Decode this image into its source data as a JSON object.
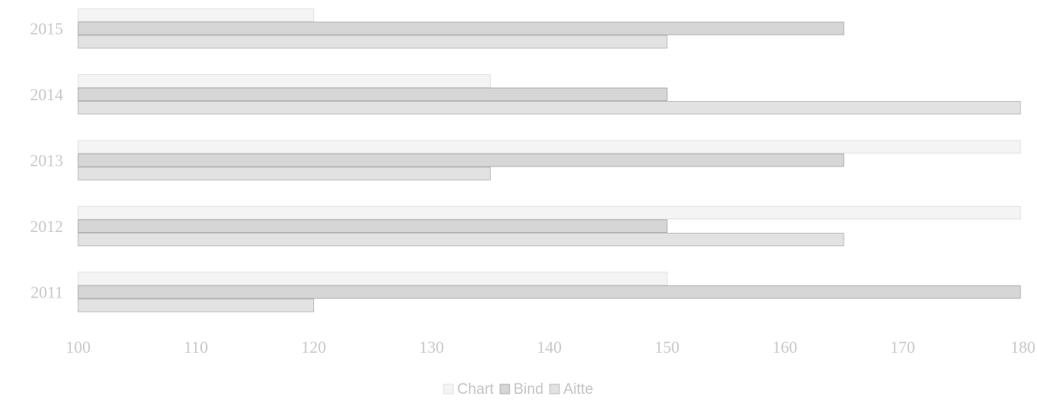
{
  "chart_data": {
    "type": "bar",
    "orientation": "horizontal",
    "categories": [
      "2011",
      "2012",
      "2013",
      "2014",
      "2015"
    ],
    "series": [
      {
        "name": "Chart",
        "color": "#f4f4f4",
        "stroke": "#e2e2e2",
        "values": [
          150,
          180,
          180,
          135,
          120
        ]
      },
      {
        "name": "Bind",
        "color": "#d6d6d6",
        "stroke": "#b0b0b0",
        "values": [
          180,
          150,
          165,
          150,
          165
        ]
      },
      {
        "name": "Aitte",
        "color": "#e2e2e2",
        "stroke": "#bdbdbd",
        "values": [
          120,
          165,
          135,
          180,
          150
        ]
      }
    ],
    "xlim": [
      100,
      180
    ],
    "xticks": [
      "100",
      "110",
      "120",
      "130",
      "140",
      "150",
      "160",
      "170",
      "180"
    ],
    "grid": false,
    "legend_position": "bottom-center",
    "title": "",
    "xlabel": "",
    "ylabel": ""
  }
}
